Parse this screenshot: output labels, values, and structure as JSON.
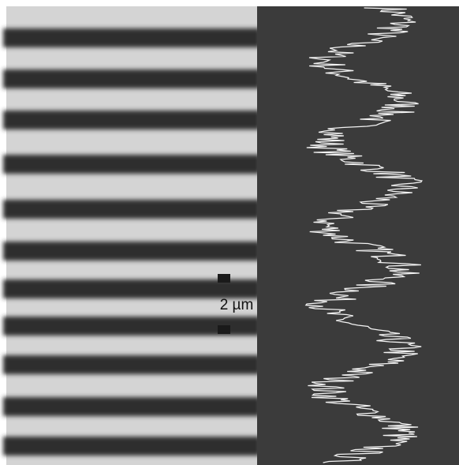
{
  "scale_bar": {
    "label": "2 µm"
  }
}
